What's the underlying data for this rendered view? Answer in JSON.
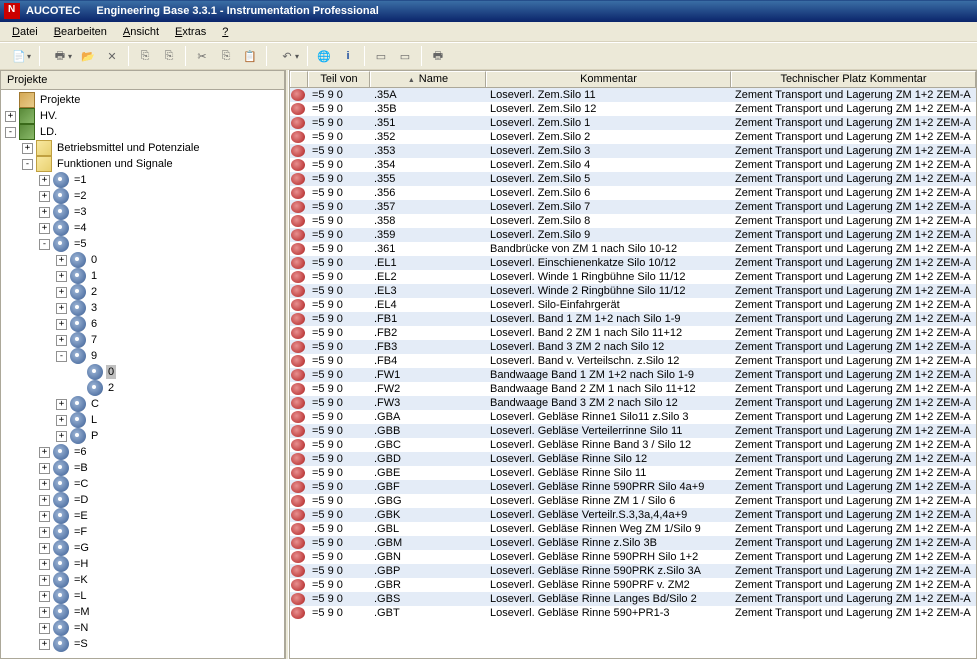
{
  "title": {
    "company": "AUCOTEC",
    "app": "Engineering Base 3.3.1 - Instrumentation Professional"
  },
  "menu": {
    "items": [
      "Datei",
      "Bearbeiten",
      "Ansicht",
      "Extras",
      "?"
    ]
  },
  "leftPanel": {
    "title": "Projekte"
  },
  "tree": {
    "root": "Projekte",
    "n1": "HV.",
    "n2": "LD.",
    "n2a": "Betriebsmittel und Potenziale",
    "n2b": "Funktionen und Signale",
    "eq": [
      "=1",
      "=2",
      "=3",
      "=4",
      "=5"
    ],
    "sub5": [
      "0",
      "1",
      "2",
      "3",
      "6",
      "7",
      "9"
    ],
    "sub9": [
      "0",
      "2"
    ],
    "sub5b": [
      "C",
      "L",
      "P"
    ],
    "eq2": [
      "=6",
      "=B",
      "=C",
      "=D",
      "=E",
      "=F",
      "=G",
      "=H",
      "=K",
      "=L",
      "=M",
      "=N",
      "=S"
    ]
  },
  "grid": {
    "headers": [
      "",
      "Teil von",
      "Name",
      "Kommentar",
      "Technischer Platz Kommentar"
    ],
    "teilvon": "=5 9 0",
    "tech": "Zement Transport und Lagerung ZM 1+2 ZEM-A",
    "rows": [
      {
        "n": ".35A",
        "k": "Loseverl. Zem.Silo 11"
      },
      {
        "n": ".35B",
        "k": "Loseverl. Zem.Silo 12"
      },
      {
        "n": ".351",
        "k": "Loseverl. Zem.Silo 1"
      },
      {
        "n": ".352",
        "k": "Loseverl. Zem.Silo 2"
      },
      {
        "n": ".353",
        "k": "Loseverl. Zem.Silo 3"
      },
      {
        "n": ".354",
        "k": "Loseverl. Zem.Silo 4"
      },
      {
        "n": ".355",
        "k": "Loseverl. Zem.Silo 5"
      },
      {
        "n": ".356",
        "k": "Loseverl. Zem.Silo 6"
      },
      {
        "n": ".357",
        "k": "Loseverl. Zem.Silo 7"
      },
      {
        "n": ".358",
        "k": "Loseverl. Zem.Silo 8"
      },
      {
        "n": ".359",
        "k": "Loseverl. Zem.Silo 9"
      },
      {
        "n": ".361",
        "k": "Bandbrücke von ZM 1 nach Silo 10-12"
      },
      {
        "n": ".EL1",
        "k": "Loseverl. Einschienenkatze Silo 10/12"
      },
      {
        "n": ".EL2",
        "k": "Loseverl. Winde 1 Ringbühne Silo 11/12"
      },
      {
        "n": ".EL3",
        "k": "Loseverl. Winde 2 Ringbühne Silo 11/12"
      },
      {
        "n": ".EL4",
        "k": "Loseverl. Silo-Einfahrgerät"
      },
      {
        "n": ".FB1",
        "k": "Loseverl. Band 1  ZM 1+2 nach Silo 1-9"
      },
      {
        "n": ".FB2",
        "k": "Loseverl. Band 2  ZM 1 nach Silo 11+12"
      },
      {
        "n": ".FB3",
        "k": "Loseverl. Band 3  ZM 2 nach Silo 12"
      },
      {
        "n": ".FB4",
        "k": "Loseverl. Band v. Verteilschn. z.Silo 12"
      },
      {
        "n": ".FW1",
        "k": "Bandwaage Band 1  ZM 1+2 nach Silo 1-9"
      },
      {
        "n": ".FW2",
        "k": "Bandwaage Band 2  ZM 1 nach Silo 11+12"
      },
      {
        "n": ".FW3",
        "k": "Bandwaage Band 3  ZM 2 nach Silo 12"
      },
      {
        "n": ".GBA",
        "k": "Loseverl. Gebläse Rinne1 Silo11 z.Silo 3"
      },
      {
        "n": ".GBB",
        "k": "Loseverl. Gebläse Verteilerrinne Silo 11"
      },
      {
        "n": ".GBC",
        "k": "Loseverl. Gebläse Rinne Band 3 / Silo 12"
      },
      {
        "n": ".GBD",
        "k": "Loseverl. Gebläse Rinne Silo 12"
      },
      {
        "n": ".GBE",
        "k": "Loseverl. Gebläse Rinne Silo 11"
      },
      {
        "n": ".GBF",
        "k": "Loseverl. Gebläse Rinne 590PRR Silo 4a+9"
      },
      {
        "n": ".GBG",
        "k": "Loseverl. Gebläse Rinne ZM 1 / Silo 6"
      },
      {
        "n": ".GBK",
        "k": "Loseverl. Gebläse Verteilr.S.3,3a,4,4a+9"
      },
      {
        "n": ".GBL",
        "k": "Loseverl. Gebläse Rinnen Weg ZM 1/Silo 9"
      },
      {
        "n": ".GBM",
        "k": "Loseverl. Gebläse Rinne z.Silo 3B"
      },
      {
        "n": ".GBN",
        "k": "Loseverl. Gebläse Rinne 590PRH Silo 1+2"
      },
      {
        "n": ".GBP",
        "k": "Loseverl. Gebläse Rinne 590PRK z.Silo 3A"
      },
      {
        "n": ".GBR",
        "k": "Loseverl. Gebläse Rinne 590PRF v. ZM2"
      },
      {
        "n": ".GBS",
        "k": "Loseverl. Gebläse Rinne Langes Bd/Silo 2"
      },
      {
        "n": ".GBT",
        "k": "Loseverl. Gebläse Rinne 590+PR1-3"
      }
    ]
  }
}
